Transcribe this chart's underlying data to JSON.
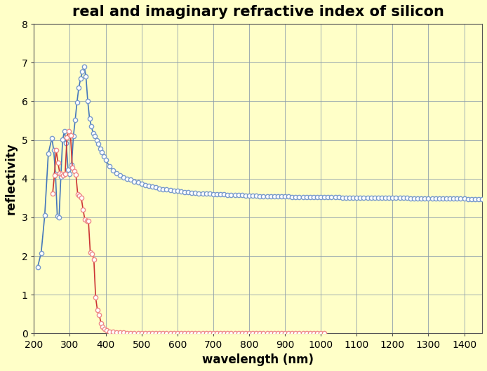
{
  "title": "real and imaginary refractive index of silicon",
  "xlabel": "wavelength (nm)",
  "ylabel": "reflectivity",
  "xlim": [
    200,
    1450
  ],
  "ylim": [
    0,
    8
  ],
  "background_color": "#FFFFC8",
  "n_data": [
    [
      210,
      1.71
    ],
    [
      220,
      2.08
    ],
    [
      230,
      3.05
    ],
    [
      240,
      4.65
    ],
    [
      250,
      5.05
    ],
    [
      255,
      4.73
    ],
    [
      260,
      4.12
    ],
    [
      265,
      3.04
    ],
    [
      270,
      3.0
    ],
    [
      275,
      4.05
    ],
    [
      280,
      5.01
    ],
    [
      285,
      5.23
    ],
    [
      290,
      4.92
    ],
    [
      295,
      4.24
    ],
    [
      300,
      4.12
    ],
    [
      305,
      4.35
    ],
    [
      310,
      5.1
    ],
    [
      315,
      5.52
    ],
    [
      320,
      5.98
    ],
    [
      325,
      6.35
    ],
    [
      330,
      6.58
    ],
    [
      335,
      6.76
    ],
    [
      340,
      6.9
    ],
    [
      345,
      6.65
    ],
    [
      350,
      6.0
    ],
    [
      355,
      5.56
    ],
    [
      360,
      5.35
    ],
    [
      365,
      5.18
    ],
    [
      370,
      5.1
    ],
    [
      375,
      5.0
    ],
    [
      380,
      4.9
    ],
    [
      385,
      4.78
    ],
    [
      390,
      4.68
    ],
    [
      395,
      4.57
    ],
    [
      400,
      4.48
    ],
    [
      410,
      4.33
    ],
    [
      420,
      4.22
    ],
    [
      430,
      4.14
    ],
    [
      440,
      4.08
    ],
    [
      450,
      4.04
    ],
    [
      460,
      4.0
    ],
    [
      470,
      3.97
    ],
    [
      480,
      3.93
    ],
    [
      490,
      3.9
    ],
    [
      500,
      3.87
    ],
    [
      510,
      3.84
    ],
    [
      520,
      3.82
    ],
    [
      530,
      3.79
    ],
    [
      540,
      3.77
    ],
    [
      550,
      3.75
    ],
    [
      560,
      3.73
    ],
    [
      570,
      3.72
    ],
    [
      580,
      3.7
    ],
    [
      590,
      3.69
    ],
    [
      600,
      3.68
    ],
    [
      610,
      3.67
    ],
    [
      620,
      3.66
    ],
    [
      630,
      3.65
    ],
    [
      640,
      3.64
    ],
    [
      650,
      3.63
    ],
    [
      660,
      3.62
    ],
    [
      670,
      3.62
    ],
    [
      680,
      3.61
    ],
    [
      690,
      3.61
    ],
    [
      700,
      3.6
    ],
    [
      710,
      3.6
    ],
    [
      720,
      3.59
    ],
    [
      730,
      3.59
    ],
    [
      740,
      3.58
    ],
    [
      750,
      3.58
    ],
    [
      760,
      3.57
    ],
    [
      770,
      3.57
    ],
    [
      780,
      3.57
    ],
    [
      790,
      3.56
    ],
    [
      800,
      3.56
    ],
    [
      810,
      3.56
    ],
    [
      820,
      3.56
    ],
    [
      830,
      3.55
    ],
    [
      840,
      3.55
    ],
    [
      850,
      3.55
    ],
    [
      860,
      3.55
    ],
    [
      870,
      3.54
    ],
    [
      880,
      3.54
    ],
    [
      890,
      3.54
    ],
    [
      900,
      3.54
    ],
    [
      910,
      3.54
    ],
    [
      920,
      3.53
    ],
    [
      930,
      3.53
    ],
    [
      940,
      3.53
    ],
    [
      950,
      3.53
    ],
    [
      960,
      3.53
    ],
    [
      970,
      3.53
    ],
    [
      980,
      3.52
    ],
    [
      990,
      3.52
    ],
    [
      1000,
      3.52
    ],
    [
      1010,
      3.52
    ],
    [
      1020,
      3.52
    ],
    [
      1030,
      3.52
    ],
    [
      1040,
      3.52
    ],
    [
      1050,
      3.52
    ],
    [
      1060,
      3.51
    ],
    [
      1070,
      3.51
    ],
    [
      1080,
      3.51
    ],
    [
      1090,
      3.51
    ],
    [
      1100,
      3.51
    ],
    [
      1110,
      3.51
    ],
    [
      1120,
      3.51
    ],
    [
      1130,
      3.51
    ],
    [
      1140,
      3.51
    ],
    [
      1150,
      3.51
    ],
    [
      1160,
      3.51
    ],
    [
      1170,
      3.5
    ],
    [
      1180,
      3.5
    ],
    [
      1190,
      3.5
    ],
    [
      1200,
      3.5
    ],
    [
      1210,
      3.5
    ],
    [
      1220,
      3.5
    ],
    [
      1230,
      3.5
    ],
    [
      1240,
      3.5
    ],
    [
      1250,
      3.49
    ],
    [
      1260,
      3.49
    ],
    [
      1270,
      3.49
    ],
    [
      1280,
      3.49
    ],
    [
      1290,
      3.49
    ],
    [
      1300,
      3.49
    ],
    [
      1310,
      3.49
    ],
    [
      1320,
      3.49
    ],
    [
      1330,
      3.49
    ],
    [
      1340,
      3.49
    ],
    [
      1350,
      3.48
    ],
    [
      1360,
      3.48
    ],
    [
      1370,
      3.48
    ],
    [
      1380,
      3.48
    ],
    [
      1390,
      3.48
    ],
    [
      1400,
      3.48
    ],
    [
      1410,
      3.47
    ],
    [
      1420,
      3.47
    ],
    [
      1430,
      3.47
    ],
    [
      1440,
      3.47
    ],
    [
      1450,
      3.47
    ]
  ],
  "k_data": [
    [
      252,
      3.61
    ],
    [
      257,
      4.09
    ],
    [
      262,
      4.74
    ],
    [
      267,
      4.41
    ],
    [
      272,
      4.14
    ],
    [
      277,
      4.12
    ],
    [
      282,
      4.08
    ],
    [
      287,
      4.13
    ],
    [
      292,
      5.07
    ],
    [
      297,
      5.23
    ],
    [
      302,
      5.12
    ],
    [
      307,
      4.28
    ],
    [
      312,
      4.19
    ],
    [
      317,
      4.1
    ],
    [
      322,
      3.6
    ],
    [
      327,
      3.56
    ],
    [
      332,
      3.5
    ],
    [
      337,
      3.2
    ],
    [
      342,
      2.94
    ],
    [
      347,
      2.91
    ],
    [
      352,
      2.9
    ],
    [
      357,
      2.1
    ],
    [
      362,
      2.06
    ],
    [
      367,
      1.92
    ],
    [
      372,
      0.93
    ],
    [
      377,
      0.6
    ],
    [
      382,
      0.48
    ],
    [
      387,
      0.27
    ],
    [
      392,
      0.18
    ],
    [
      397,
      0.12
    ],
    [
      402,
      0.08
    ],
    [
      410,
      0.05
    ],
    [
      420,
      0.04
    ],
    [
      430,
      0.03
    ],
    [
      440,
      0.02
    ],
    [
      450,
      0.02
    ],
    [
      460,
      0.01
    ],
    [
      470,
      0.01
    ],
    [
      480,
      0.01
    ],
    [
      490,
      0.01
    ],
    [
      500,
      0.0
    ],
    [
      510,
      0.0
    ],
    [
      520,
      0.0
    ],
    [
      530,
      0.0
    ],
    [
      540,
      0.0
    ],
    [
      550,
      0.0
    ],
    [
      560,
      0.0
    ],
    [
      570,
      0.0
    ],
    [
      580,
      0.0
    ],
    [
      590,
      0.0
    ],
    [
      600,
      0.0
    ],
    [
      610,
      0.0
    ],
    [
      620,
      0.0
    ],
    [
      630,
      0.0
    ],
    [
      640,
      0.0
    ],
    [
      650,
      0.0
    ],
    [
      660,
      0.0
    ],
    [
      670,
      0.0
    ],
    [
      680,
      0.0
    ],
    [
      690,
      0.0
    ],
    [
      700,
      0.0
    ],
    [
      710,
      0.0
    ],
    [
      720,
      0.0
    ],
    [
      730,
      0.0
    ],
    [
      740,
      0.0
    ],
    [
      750,
      0.0
    ],
    [
      760,
      0.0
    ],
    [
      770,
      0.0
    ],
    [
      780,
      0.0
    ],
    [
      790,
      0.0
    ],
    [
      800,
      0.0
    ],
    [
      810,
      0.0
    ],
    [
      820,
      0.0
    ],
    [
      830,
      0.0
    ],
    [
      840,
      0.0
    ],
    [
      850,
      0.0
    ],
    [
      860,
      0.0
    ],
    [
      870,
      0.0
    ],
    [
      880,
      0.0
    ],
    [
      890,
      0.0
    ],
    [
      900,
      0.0
    ],
    [
      910,
      0.0
    ],
    [
      920,
      0.0
    ],
    [
      930,
      0.0
    ],
    [
      940,
      0.0
    ],
    [
      950,
      0.0
    ],
    [
      960,
      0.0
    ],
    [
      970,
      0.0
    ],
    [
      980,
      0.0
    ],
    [
      990,
      0.0
    ],
    [
      1000,
      0.01
    ],
    [
      1010,
      0.0
    ]
  ],
  "n_marker_color": "#7799CC",
  "n_line_color": "#4477BB",
  "k_marker_color": "#EE8888",
  "k_line_color": "#CC3333",
  "grid_color": "#8899AA",
  "title_fontsize": 15,
  "label_fontsize": 12,
  "tick_fontsize": 10,
  "x_ticks": [
    200,
    300,
    400,
    500,
    600,
    700,
    800,
    900,
    1000,
    1100,
    1200,
    1300,
    1400
  ],
  "y_ticks": [
    0,
    1,
    2,
    3,
    4,
    5,
    6,
    7,
    8
  ]
}
